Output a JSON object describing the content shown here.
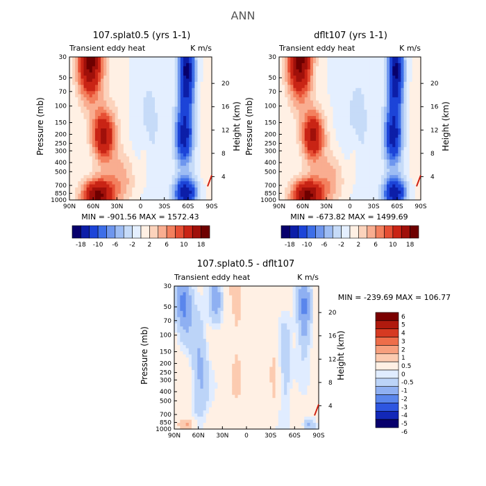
{
  "figure_title": "ANN",
  "chart_data": [
    {
      "type": "heatmap",
      "title": "107.splat0.5 (yrs 1-1)",
      "subtitle_left": "Transient eddy heat",
      "subtitle_right": "K m/s",
      "ylabel": "Pressure (mb)",
      "ylabel_right": "Height (km)",
      "x_ticks": [
        "90N",
        "60N",
        "30N",
        "0",
        "30S",
        "60S",
        "90S"
      ],
      "y_ticks": [
        "30",
        "50",
        "70",
        "100",
        "150",
        "200",
        "250",
        "300",
        "400",
        "500",
        "700",
        "850",
        "1000"
      ],
      "height_ticks": [
        "20",
        "16",
        "12",
        "8",
        "4"
      ],
      "min_max": "MIN = -901.56   MAX = 1572.43",
      "colorbar_labels": [
        "-18",
        "-10",
        "-6",
        "-2",
        "2",
        "6",
        "10",
        "18"
      ],
      "color_levels": 16
    },
    {
      "type": "heatmap",
      "title": "dflt107 (yrs 1-1)",
      "subtitle_left": "Transient eddy heat",
      "subtitle_right": "K m/s",
      "ylabel": "Pressure (mb)",
      "ylabel_right": "Height (km)",
      "x_ticks": [
        "90N",
        "60N",
        "30N",
        "0",
        "30S",
        "60S",
        "90S"
      ],
      "y_ticks": [
        "30",
        "50",
        "70",
        "100",
        "150",
        "200",
        "250",
        "300",
        "400",
        "500",
        "700",
        "850",
        "1000"
      ],
      "height_ticks": [
        "20",
        "16",
        "12",
        "8",
        "4"
      ],
      "min_max": "MIN = -673.82   MAX = 1499.69",
      "colorbar_labels": [
        "-18",
        "-10",
        "-6",
        "-2",
        "2",
        "6",
        "10",
        "18"
      ],
      "color_levels": 16
    },
    {
      "type": "heatmap",
      "title": "107.splat0.5 - dflt107",
      "subtitle_left": "Transient eddy heat",
      "subtitle_right": "K m/s",
      "ylabel": "Pressure (mb)",
      "ylabel_right": "Height (km)",
      "x_ticks": [
        "90N",
        "60N",
        "30N",
        "0",
        "30S",
        "60S",
        "90S"
      ],
      "y_ticks": [
        "30",
        "50",
        "70",
        "100",
        "150",
        "200",
        "250",
        "300",
        "400",
        "500",
        "700",
        "850",
        "1000"
      ],
      "height_ticks": [
        "20",
        "16",
        "12",
        "8",
        "4"
      ],
      "min_max": "MIN = -239.69   MAX = 106.77",
      "colorbar_labels": [
        "6",
        "5",
        "4",
        "3",
        "2",
        "1",
        "0.5",
        "0",
        "-0.5",
        "-1",
        "-2",
        "-3",
        "-4",
        "-5",
        "-6"
      ],
      "color_levels": 14
    }
  ],
  "colors": {
    "div16": [
      "#08006c",
      "#0c1ea8",
      "#1c44d8",
      "#3d6ee8",
      "#6e96ee",
      "#9ebdf4",
      "#c6dbf8",
      "#e4efff",
      "#fff0e4",
      "#fcd3bc",
      "#f9ad90",
      "#f3805e",
      "#e64f34",
      "#c92415",
      "#a0100a",
      "#6e0000"
    ],
    "div14": [
      "#08006c",
      "#1228b8",
      "#2e56e0",
      "#5a86ec",
      "#8fb0f2",
      "#bcd4f8",
      "#e0ecff",
      "#fff0e4",
      "#fccbb0",
      "#f7a07e",
      "#ee6e4a",
      "#d63a22",
      "#b01a0e",
      "#7a0000"
    ]
  }
}
